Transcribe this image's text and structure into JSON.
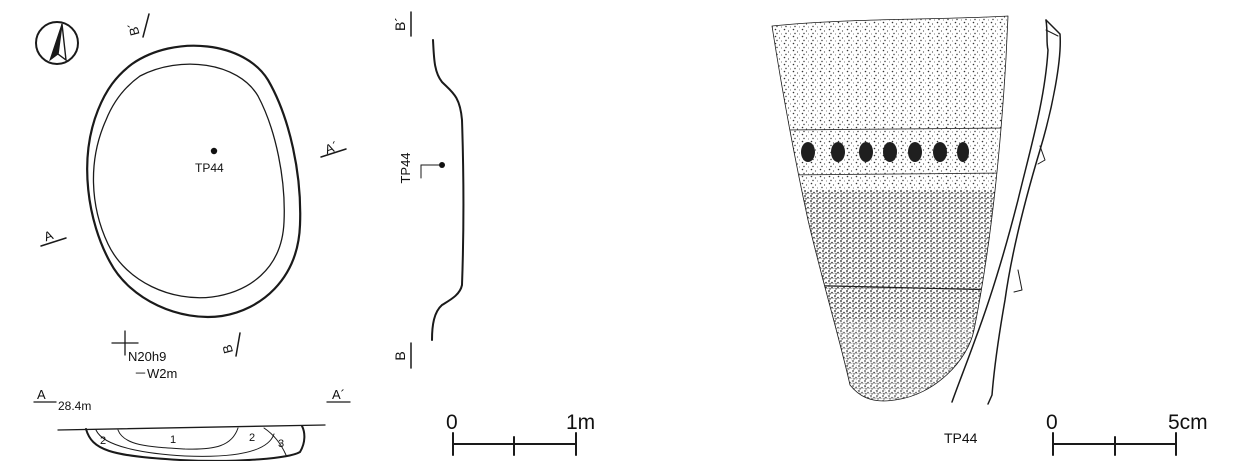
{
  "plan": {
    "point_label": "TP44",
    "section_a_label": "A",
    "section_a_prime_label": "A´",
    "section_b_label": "B",
    "section_b_prime_label": "B´",
    "grid_north": "N20h9",
    "grid_west": "－W2m"
  },
  "section_ab": {
    "a_label": "A",
    "a_prime_label": "A´",
    "elevation": "28.4m",
    "layer_1": "1",
    "layer_2_left": "2",
    "layer_2_right": "2",
    "layer_3": "3"
  },
  "section_bb": {
    "b_prime_label": "B´",
    "b_label": "B",
    "point_label": "TP44"
  },
  "scale_1m": {
    "zero": "0",
    "end": "1m"
  },
  "artifact": {
    "label": "TP44"
  },
  "scale_5cm": {
    "zero": "0",
    "end": "5cm"
  }
}
